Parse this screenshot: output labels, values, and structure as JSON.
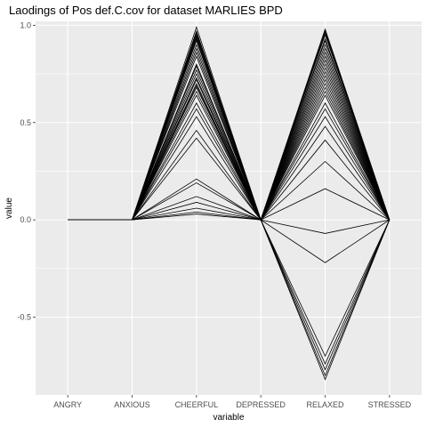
{
  "chart_data": {
    "type": "line",
    "title": "Laodings of Pos def.C.cov for dataset MARLIES BPD",
    "xlabel": "variable",
    "ylabel": "value",
    "categories": [
      "ANGRY",
      "ANXIOUS",
      "CHEERFUL",
      "DEPRESSED",
      "RELAXED",
      "STRESSED"
    ],
    "ylim": [
      -0.9,
      1.02
    ],
    "yticks": [
      1.0,
      0.5,
      0.0,
      -0.5
    ],
    "ytick_labels": [
      "1.0",
      "0.5",
      "0.0",
      "-0.5"
    ],
    "grid": true,
    "legend": "none",
    "colors": {
      "panel": "#ebebeb",
      "grid": "#ffffff",
      "line": "#000000"
    },
    "series": [
      {
        "values": [
          0,
          0,
          0.99,
          0,
          0.98,
          0
        ]
      },
      {
        "values": [
          0,
          0,
          0.97,
          0,
          0.97,
          0
        ]
      },
      {
        "values": [
          0,
          0,
          0.96,
          0,
          0.96,
          0
        ]
      },
      {
        "values": [
          0,
          0,
          0.95,
          0,
          0.95,
          0
        ]
      },
      {
        "values": [
          0,
          0,
          0.94,
          0,
          0.93,
          0
        ]
      },
      {
        "values": [
          0,
          0,
          0.93,
          0,
          0.92,
          0
        ]
      },
      {
        "values": [
          0,
          0,
          0.92,
          0,
          0.9,
          0
        ]
      },
      {
        "values": [
          0,
          0,
          0.9,
          0,
          0.88,
          0
        ]
      },
      {
        "values": [
          0,
          0,
          0.88,
          0,
          0.86,
          0
        ]
      },
      {
        "values": [
          0,
          0,
          0.86,
          0,
          0.84,
          0
        ]
      },
      {
        "values": [
          0,
          0,
          0.84,
          0,
          0.82,
          0
        ]
      },
      {
        "values": [
          0,
          0,
          0.8,
          0,
          0.8,
          0
        ]
      },
      {
        "values": [
          0,
          0,
          0.79,
          0,
          0.78,
          0
        ]
      },
      {
        "values": [
          0,
          0,
          0.77,
          0,
          0.76,
          0
        ]
      },
      {
        "values": [
          0,
          0,
          0.75,
          0,
          0.74,
          0
        ]
      },
      {
        "values": [
          0,
          0,
          0.73,
          0,
          0.72,
          0
        ]
      },
      {
        "values": [
          0,
          0,
          0.72,
          0,
          0.7,
          0
        ]
      },
      {
        "values": [
          0,
          0,
          0.7,
          0,
          0.68,
          0
        ]
      },
      {
        "values": [
          0,
          0,
          0.69,
          0,
          0.66,
          0
        ]
      },
      {
        "values": [
          0,
          0,
          0.68,
          0,
          0.64,
          0
        ]
      },
      {
        "values": [
          0,
          0,
          0.66,
          0,
          0.6,
          0
        ]
      },
      {
        "values": [
          0,
          0,
          0.64,
          0,
          0.57,
          0
        ]
      },
      {
        "values": [
          0,
          0,
          0.6,
          0,
          0.53,
          0
        ]
      },
      {
        "values": [
          0,
          0,
          0.57,
          0,
          0.48,
          0
        ]
      },
      {
        "values": [
          0,
          0,
          0.53,
          0,
          0.41,
          0
        ]
      },
      {
        "values": [
          0,
          0,
          0.46,
          0,
          0.3,
          0
        ]
      },
      {
        "values": [
          0,
          0,
          0.42,
          0,
          0.16,
          0
        ]
      },
      {
        "values": [
          0,
          0,
          0.21,
          0,
          -0.22,
          0
        ]
      },
      {
        "values": [
          0,
          0,
          0.19,
          0,
          -0.07,
          0
        ]
      },
      {
        "values": [
          0,
          0,
          0.12,
          0,
          -0.7,
          0
        ]
      },
      {
        "values": [
          0,
          0,
          0.09,
          0,
          -0.74,
          0
        ]
      },
      {
        "values": [
          0,
          0,
          0.06,
          0,
          -0.77,
          0
        ]
      },
      {
        "values": [
          0,
          0,
          0.04,
          0,
          -0.8,
          0
        ]
      },
      {
        "values": [
          0,
          0,
          0.03,
          0,
          -0.82,
          0
        ]
      }
    ]
  }
}
